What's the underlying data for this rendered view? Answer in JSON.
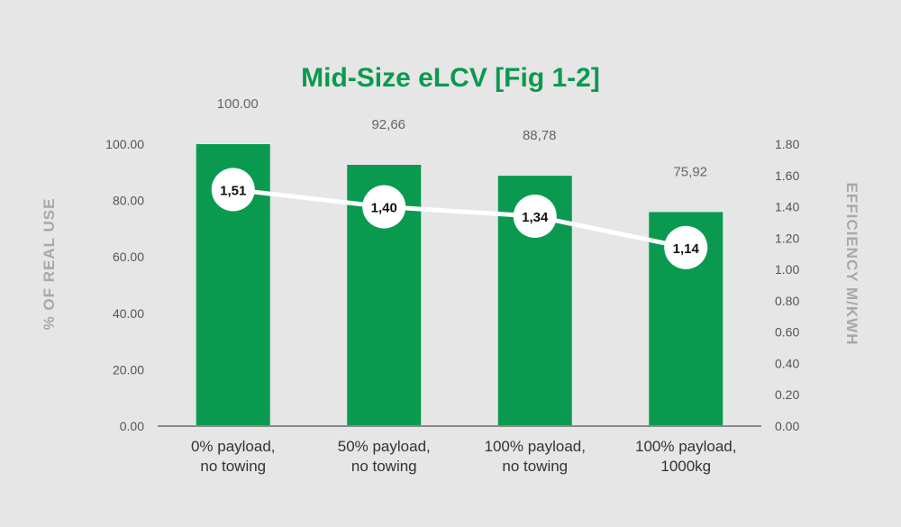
{
  "chart_data": {
    "type": "bar",
    "title": "Mid-Size eLCV [Fig 1-2]",
    "categories": [
      [
        "0% payload,",
        "no towing"
      ],
      [
        "50% payload,",
        "no towing"
      ],
      [
        "100% payload,",
        "no towing"
      ],
      [
        "100% payload,",
        "1000kg"
      ]
    ],
    "series": [
      {
        "type": "bar",
        "axis": "left",
        "values": [
          100.0,
          92.66,
          88.78,
          75.92
        ],
        "labels": [
          "100.00",
          "92,66",
          "88,78",
          "75,92"
        ],
        "color": "#0a9a4f"
      },
      {
        "type": "line",
        "axis": "right",
        "values": [
          1.51,
          1.4,
          1.34,
          1.14
        ],
        "labels": [
          "1,51",
          "1,40",
          "1,34",
          "1,14"
        ],
        "color": "#ffffff"
      }
    ],
    "ylabel": "% OF REAL USE",
    "ylim": [
      0,
      100
    ],
    "yticks": [
      "0.00",
      "20.00",
      "40.00",
      "60.00",
      "80.00",
      "100.00"
    ],
    "y2label": "EFFICIENCY M/KWH",
    "y2lim": [
      0,
      1.8
    ],
    "y2ticks": [
      "0.00",
      "0.20",
      "0.40",
      "0.60",
      "0.80",
      "1.00",
      "1.20",
      "1.40",
      "1.60",
      "1.80"
    ],
    "grid": false,
    "colors": {
      "bar": "#0a9a4f",
      "title": "#0a9a4f",
      "line": "#ffffff",
      "background": "#e6e6e6"
    }
  }
}
